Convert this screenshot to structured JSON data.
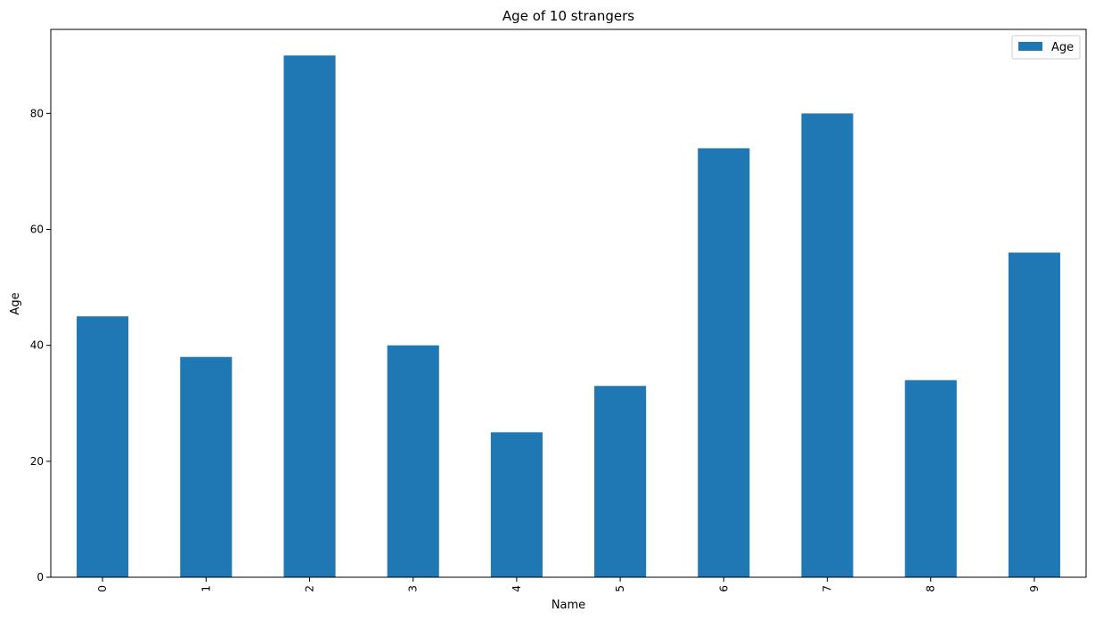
{
  "chart_data": {
    "type": "bar",
    "title": "Age of 10 strangers",
    "xlabel": "Name",
    "ylabel": "Age",
    "categories": [
      "0",
      "1",
      "2",
      "3",
      "4",
      "5",
      "6",
      "7",
      "8",
      "9"
    ],
    "series": [
      {
        "name": "Age",
        "values": [
          45,
          38,
          90,
          40,
          25,
          33,
          74,
          80,
          34,
          56
        ]
      }
    ],
    "yticks": [
      "0",
      "20",
      "40",
      "60",
      "80"
    ],
    "ylim": [
      0,
      94.5
    ],
    "grid": false,
    "legend": "top-right",
    "bar_color": "#1f77b4",
    "xtick_rotation": "vertical"
  }
}
